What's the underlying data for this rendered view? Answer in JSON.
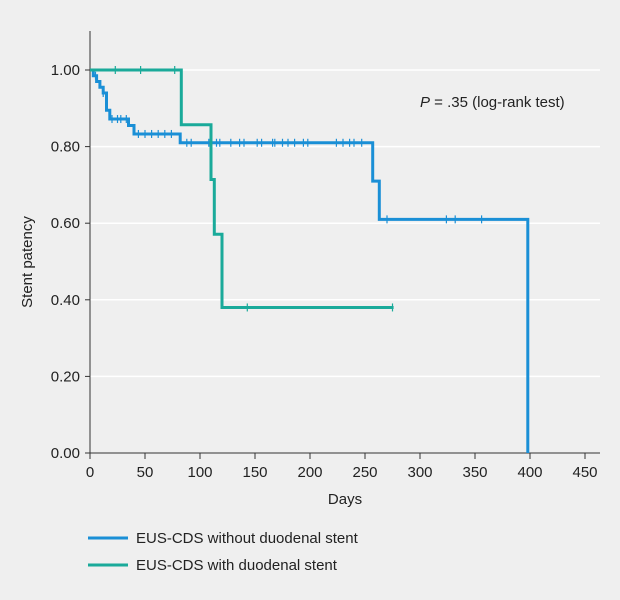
{
  "chart_data": {
    "type": "line",
    "subtype": "kaplan-meier step plot",
    "xlabel": "Days",
    "ylabel": "Stent patency",
    "xlim": [
      0,
      460
    ],
    "ylim": [
      0,
      1.05
    ],
    "x_ticks": [
      0,
      50,
      100,
      150,
      200,
      250,
      300,
      350,
      400,
      450
    ],
    "x_tick_labels": [
      "0",
      "50",
      "100",
      "150",
      "200",
      "250",
      "300",
      "350",
      "400",
      "450"
    ],
    "y_ticks": [
      0,
      0.2,
      0.4,
      0.6,
      0.8,
      1.0
    ],
    "y_tick_labels": [
      "0.00",
      "0.20",
      "0.40",
      "0.60",
      "0.80",
      "1.00"
    ],
    "grid": "horizontal",
    "annotation": {
      "italic": "P",
      "rest": " = .35 (log-rank test)"
    },
    "legend_position": "bottom",
    "series": [
      {
        "name": "EUS-CDS without duodenal stent",
        "color": "#1a8fd6",
        "steps": [
          [
            0,
            1.0
          ],
          [
            3,
            0.985
          ],
          [
            6,
            0.97
          ],
          [
            9,
            0.955
          ],
          [
            12,
            0.94
          ],
          [
            15,
            0.895
          ],
          [
            18,
            0.872
          ],
          [
            30,
            0.872
          ],
          [
            35,
            0.855
          ],
          [
            40,
            0.833
          ],
          [
            80,
            0.833
          ],
          [
            82,
            0.81
          ],
          [
            255,
            0.81
          ],
          [
            257,
            0.71
          ],
          [
            262,
            0.71
          ],
          [
            263,
            0.61
          ],
          [
            397,
            0.61
          ],
          [
            398,
            0.0
          ]
        ],
        "censored": [
          5,
          12,
          20,
          25,
          28,
          33,
          44,
          50,
          56,
          62,
          68,
          74,
          88,
          92,
          108,
          115,
          118,
          128,
          136,
          140,
          152,
          156,
          166,
          168,
          175,
          180,
          186,
          194,
          198,
          224,
          230,
          236,
          240,
          247,
          270,
          324,
          332,
          356
        ]
      },
      {
        "name": "EUS-CDS with duodenal stent",
        "color": "#1aaa9a",
        "steps": [
          [
            0,
            1.0
          ],
          [
            83,
            1.0
          ],
          [
            83,
            0.857
          ],
          [
            110,
            0.857
          ],
          [
            110,
            0.714
          ],
          [
            113,
            0.714
          ],
          [
            113,
            0.571
          ],
          [
            120,
            0.571
          ],
          [
            120,
            0.38
          ],
          [
            276,
            0.38
          ]
        ],
        "censored": [
          23,
          46,
          77,
          143,
          275
        ]
      }
    ]
  }
}
